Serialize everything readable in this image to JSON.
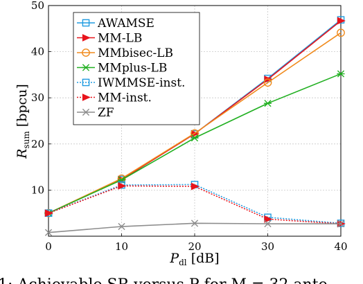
{
  "chart_data": {
    "type": "line",
    "xlabel_main": "P",
    "xlabel_sub": "dl",
    "xlabel_unit": " [dB]",
    "ylabel_main": "R",
    "ylabel_sub": "sum",
    "ylabel_unit": " [bpcu]",
    "x": [
      0,
      10,
      20,
      30,
      40
    ],
    "xticks": [
      0,
      10,
      20,
      30,
      40
    ],
    "yticks": [
      10,
      20,
      30,
      40,
      50
    ],
    "xlim": [
      0,
      40
    ],
    "ylim": [
      0,
      50
    ],
    "grid": true,
    "legend_position": "top-left",
    "series": [
      {
        "name": "AWAMSE",
        "color": "#1f9be0",
        "marker": "square",
        "dash": "solid",
        "values": [
          5.0,
          12.3,
          22.2,
          34.2,
          46.9
        ]
      },
      {
        "name": "MM-LB",
        "color": "#e8141c",
        "marker": "triangle-right",
        "dash": "solid",
        "values": [
          5.0,
          12.3,
          22.2,
          34.0,
          46.7
        ]
      },
      {
        "name": "MMbisec-LB",
        "color": "#f08a1c",
        "marker": "circle",
        "dash": "solid",
        "values": [
          5.0,
          12.5,
          22.3,
          33.3,
          44.1
        ]
      },
      {
        "name": "MMplus-LB",
        "color": "#22b022",
        "marker": "star",
        "dash": "solid",
        "values": [
          5.0,
          12.2,
          21.3,
          28.8,
          35.2
        ]
      },
      {
        "name": "IWMMSE-inst.",
        "color": "#1f9be0",
        "marker": "square",
        "dash": "dotted",
        "values": [
          5.0,
          11.1,
          11.2,
          4.1,
          2.8
        ]
      },
      {
        "name": "MM-inst.",
        "color": "#e8141c",
        "marker": "triangle-right",
        "dash": "dotted",
        "values": [
          5.0,
          10.9,
          10.8,
          3.7,
          2.7
        ]
      },
      {
        "name": "ZF",
        "color": "#8c8c8c",
        "marker": "x",
        "dash": "solid",
        "values": [
          0.8,
          2.1,
          2.8,
          2.7,
          2.7
        ]
      }
    ]
  },
  "caption": "1: Achievable SR versus P  for M = 32 ante"
}
